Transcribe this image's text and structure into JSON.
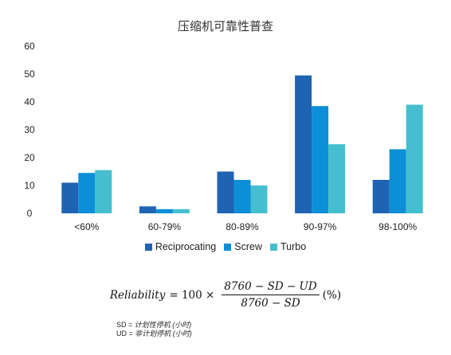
{
  "chart_data": {
    "type": "bar",
    "title": "压缩机可靠性普查",
    "categories": [
      "<60%",
      "60-79%",
      "80-89%",
      "90-97%",
      "98-100%"
    ],
    "series": [
      {
        "name": "Reciprocating",
        "color": "#1f63b3",
        "values": [
          11,
          2.5,
          15,
          49.5,
          12
        ]
      },
      {
        "name": "Screw",
        "color": "#0c8fd6",
        "values": [
          14.5,
          1.5,
          12,
          38.5,
          23
        ]
      },
      {
        "name": "Turbo",
        "color": "#45bfcf",
        "values": [
          15.5,
          1.5,
          10,
          24.8,
          39
        ]
      }
    ],
    "ylim": [
      0,
      60
    ],
    "yticks": [
      0,
      10,
      20,
      30,
      40,
      50,
      60
    ],
    "grid": false,
    "legend_position": "bottom",
    "xlabel": "",
    "ylabel": ""
  },
  "formula": {
    "lhs": "Reliability",
    "eq": "= 100 ×",
    "numerator": "8760 − SD − UD",
    "denominator": "8760 − SD",
    "suffix": "(%)"
  },
  "notes": [
    {
      "label": "SD = ",
      "text": "计划性停机 (小时)"
    },
    {
      "label": "UD = ",
      "text": "非计划停机 (小时)"
    }
  ]
}
